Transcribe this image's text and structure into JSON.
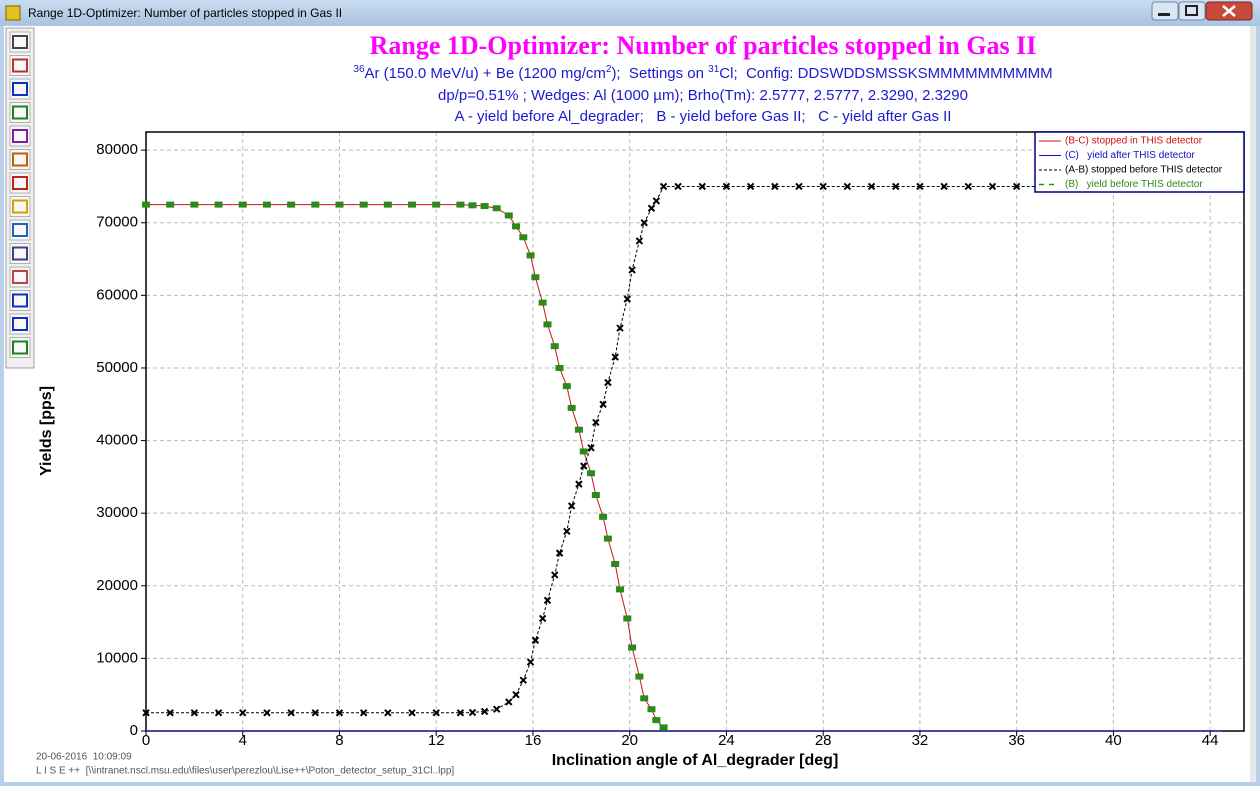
{
  "window": {
    "title": "Range 1D-Optimizer: Number of particles stopped in Gas II"
  },
  "footer": {
    "timestamp": "20-06-2016  10:09:09",
    "file": "L I S E ++  [\\\\intranet.nscl.msu.edu\\files\\user\\perezlou\\Lise++\\Poton_detector_setup_31Cl..lpp]"
  },
  "chart_data": {
    "type": "line",
    "title": "Range 1D-Optimizer: Number of particles stopped in Gas II",
    "subtitle_parts": [
      {
        "text": "36",
        "sup": true
      },
      {
        "text": "Ar (150.0 MeV/u) + Be (1200 mg/cm",
        "sup": false
      },
      {
        "text": "2",
        "sup": true
      },
      {
        "text": ");  Settings on ",
        "sup": false
      },
      {
        "text": "31",
        "sup": true
      },
      {
        "text": "Cl;  Config: DDSWDDSMSSKSMMMMMMMMMM",
        "sup": false
      }
    ],
    "subtitle_lines": [
      "dp/p=0.51% ; Wedges: Al (1000 µm); Brho(Tm): 2.5777, 2.5777, 2.3290, 2.3290",
      "A - yield before Al_degrader;   B - yield before Gas II;   C - yield after Gas II"
    ],
    "x_label": "Inclination angle of Al_degrader [deg]",
    "y_label": "Yields [pps]",
    "xlim": [
      0,
      45.4
    ],
    "ylim": [
      0,
      82500
    ],
    "xticks": [
      0,
      4,
      8,
      12,
      16,
      20,
      24,
      28,
      32,
      36,
      40,
      44
    ],
    "yticks": [
      0,
      10000,
      20000,
      30000,
      40000,
      50000,
      60000,
      70000,
      80000
    ],
    "grid": true,
    "legend": "top-right",
    "series": [
      {
        "name": "(B-C) stopped in THIS detector",
        "color": "#d01010",
        "line": "solid",
        "marker": "none",
        "x": [
          0,
          1,
          2,
          3,
          4,
          5,
          6,
          7,
          8,
          9,
          10,
          11,
          12,
          13,
          13.5,
          14,
          14.5,
          15,
          15.3,
          15.6,
          15.9,
          16.1,
          16.4,
          16.6,
          16.9,
          17.1,
          17.4,
          17.6,
          17.9,
          18.1,
          18.4,
          18.6,
          18.9,
          19.1,
          19.4,
          19.6,
          19.9,
          20.1,
          20.4,
          20.6,
          20.9,
          21.1,
          21.4
        ],
        "values": [
          72500,
          72500,
          72500,
          72500,
          72500,
          72500,
          72500,
          72500,
          72500,
          72500,
          72500,
          72500,
          72500,
          72500,
          72400,
          72300,
          72000,
          71000,
          69500,
          68000,
          65500,
          62500,
          59000,
          56000,
          53000,
          50000,
          47500,
          44500,
          41500,
          38500,
          35500,
          32500,
          29500,
          26500,
          23000,
          19500,
          15500,
          11500,
          7500,
          4500,
          3000,
          1500,
          500
        ]
      },
      {
        "name": "(C)   yield after THIS detector",
        "color": "#1010c0",
        "line": "solid",
        "marker": "none",
        "x": [
          0,
          44.5
        ],
        "values": [
          0,
          0
        ]
      },
      {
        "name": "(A-B) stopped before THIS detector",
        "color": "#000000",
        "line": "dashed",
        "marker": "cross",
        "x": [
          0,
          1,
          2,
          3,
          4,
          5,
          6,
          7,
          8,
          9,
          10,
          11,
          12,
          13,
          13.5,
          14,
          14.5,
          15,
          15.3,
          15.6,
          15.9,
          16.1,
          16.4,
          16.6,
          16.9,
          17.1,
          17.4,
          17.6,
          17.9,
          18.1,
          18.4,
          18.6,
          18.9,
          19.1,
          19.4,
          19.6,
          19.9,
          20.1,
          20.4,
          20.6,
          20.9,
          21.1,
          21.4,
          22,
          23,
          24,
          25,
          26,
          27,
          28,
          29,
          30,
          31,
          32,
          33,
          34,
          35,
          36,
          37,
          38,
          39,
          40,
          41,
          42,
          43,
          44
        ],
        "values": [
          2500,
          2500,
          2500,
          2500,
          2500,
          2500,
          2500,
          2500,
          2500,
          2500,
          2500,
          2500,
          2500,
          2500,
          2550,
          2700,
          3000,
          4000,
          5000,
          7000,
          9500,
          12500,
          15500,
          18000,
          21500,
          24500,
          27500,
          31000,
          34000,
          36500,
          39000,
          42500,
          45000,
          48000,
          51500,
          55500,
          59500,
          63500,
          67500,
          70000,
          72000,
          73000,
          75000,
          75000,
          75000,
          75000,
          75000,
          75000,
          75000,
          75000,
          75000,
          75000,
          75000,
          75000,
          75000,
          75000,
          75000,
          75000,
          75000,
          75000,
          75000,
          75000,
          75000,
          75000,
          75000,
          75000
        ]
      },
      {
        "name": "(B)   yield before THIS detector",
        "color": "#2a8a1a",
        "line": "none",
        "marker": "square",
        "x": [
          0,
          1,
          2,
          3,
          4,
          5,
          6,
          7,
          8,
          9,
          10,
          11,
          12,
          13,
          13.5,
          14,
          14.5,
          15,
          15.3,
          15.6,
          15.9,
          16.1,
          16.4,
          16.6,
          16.9,
          17.1,
          17.4,
          17.6,
          17.9,
          18.1,
          18.4,
          18.6,
          18.9,
          19.1,
          19.4,
          19.6,
          19.9,
          20.1,
          20.4,
          20.6,
          20.9,
          21.1,
          21.4
        ],
        "values": [
          72500,
          72500,
          72500,
          72500,
          72500,
          72500,
          72500,
          72500,
          72500,
          72500,
          72500,
          72500,
          72500,
          72500,
          72400,
          72300,
          72000,
          71000,
          69500,
          68000,
          65500,
          62500,
          59000,
          56000,
          53000,
          50000,
          47500,
          44500,
          41500,
          38500,
          35500,
          32500,
          29500,
          26500,
          23000,
          19500,
          15500,
          11500,
          7500,
          4500,
          3000,
          1500,
          500
        ]
      }
    ]
  }
}
